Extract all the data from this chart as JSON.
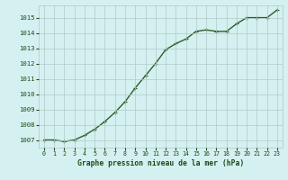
{
  "x": [
    0,
    1,
    2,
    3,
    4,
    5,
    6,
    7,
    8,
    9,
    10,
    11,
    12,
    13,
    14,
    15,
    16,
    17,
    18,
    19,
    20,
    21,
    22,
    23
  ],
  "y": [
    1007.0,
    1007.0,
    1006.9,
    1007.0,
    1007.3,
    1007.7,
    1008.2,
    1008.8,
    1009.5,
    1010.4,
    1011.2,
    1012.0,
    1012.9,
    1013.3,
    1013.6,
    1014.1,
    1014.2,
    1014.1,
    1014.1,
    1014.6,
    1015.0,
    1015.0,
    1015.0,
    1015.5
  ],
  "ylim_min": 1006.5,
  "ylim_max": 1015.8,
  "yticks": [
    1007,
    1008,
    1009,
    1010,
    1011,
    1012,
    1013,
    1014,
    1015
  ],
  "xticks": [
    0,
    1,
    2,
    3,
    4,
    5,
    6,
    7,
    8,
    9,
    10,
    11,
    12,
    13,
    14,
    15,
    16,
    17,
    18,
    19,
    20,
    21,
    22,
    23
  ],
  "xlabel": "Graphe pression niveau de la mer (hPa)",
  "line_color": "#2a5f2a",
  "marker": "+",
  "bg_color": "#d5f0f0",
  "grid_color": "#b0c8c8",
  "text_color": "#1a4a1a",
  "xlabel_fontsize": 5.8,
  "tick_fontsize": 4.8,
  "ytick_fontsize": 5.2,
  "linewidth": 1.0,
  "markersize": 3.5,
  "markeredgewidth": 0.8
}
